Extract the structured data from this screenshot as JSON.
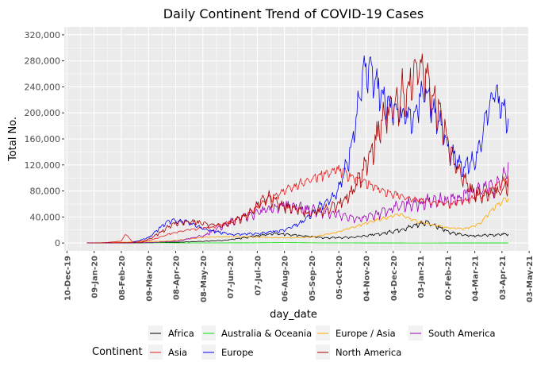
{
  "chart_data": {
    "type": "line",
    "title": "Daily Continent Trend of COVID-19 Cases",
    "xlabel": "day_date",
    "ylabel": "Total No.",
    "ylim": [
      -12000,
      332000
    ],
    "y_ticks": [
      0,
      40000,
      80000,
      120000,
      160000,
      200000,
      240000,
      280000,
      320000
    ],
    "y_tick_labels": [
      "0",
      "40,000",
      "80,000",
      "120,000",
      "160,000",
      "200,000",
      "240,000",
      "280,000",
      "320,000"
    ],
    "x_range": [
      "2019-12-07",
      "2021-05-02"
    ],
    "x_ticks": [
      "2019-12-10",
      "2020-01-09",
      "2020-02-08",
      "2020-03-09",
      "2020-04-08",
      "2020-05-08",
      "2020-06-07",
      "2020-07-07",
      "2020-08-06",
      "2020-09-05",
      "2020-10-05",
      "2020-11-04",
      "2020-12-04",
      "2021-01-03",
      "2021-02-02",
      "2021-03-04",
      "2021-04-03",
      "2021-05-03"
    ],
    "x_tick_labels": [
      "10-Dec-19",
      "09-Jan-20",
      "08-Feb-20",
      "09-Mar-20",
      "08-Apr-20",
      "08-May-20",
      "07-Jun-20",
      "07-Jul-20",
      "06-Aug-20",
      "05-Sep-20",
      "05-Oct-20",
      "04-Nov-20",
      "04-Dec-20",
      "03-Jan-21",
      "02-Feb-21",
      "04-Mar-21",
      "03-Apr-21",
      "03-May-21"
    ],
    "grid": true,
    "legend_position": "bottom",
    "legend_title": "Continent",
    "series": [
      {
        "name": "Africa",
        "color": "#000000",
        "x": [
          "2020-01-01",
          "2020-03-01",
          "2020-04-15",
          "2020-06-01",
          "2020-07-01",
          "2020-07-25",
          "2020-08-20",
          "2020-09-20",
          "2020-10-20",
          "2020-11-20",
          "2020-12-15",
          "2021-01-10",
          "2021-02-05",
          "2021-03-01",
          "2021-04-01",
          "2021-04-10"
        ],
        "y": [
          0,
          100,
          1500,
          4000,
          10000,
          15000,
          12000,
          8000,
          9000,
          14000,
          22000,
          33000,
          16000,
          11000,
          13000,
          14000
        ],
        "wiggle": 0.22
      },
      {
        "name": "Asia",
        "color": "#e31a1c",
        "x": [
          "2020-01-01",
          "2020-01-20",
          "2020-02-08",
          "2020-02-13",
          "2020-02-20",
          "2020-03-10",
          "2020-04-01",
          "2020-04-20",
          "2020-05-20",
          "2020-06-20",
          "2020-07-20",
          "2020-08-20",
          "2020-09-15",
          "2020-10-05",
          "2020-10-25",
          "2020-11-20",
          "2020-12-20",
          "2021-01-15",
          "2021-02-05",
          "2021-03-01",
          "2021-03-20",
          "2021-04-10"
        ],
        "y": [
          0,
          500,
          3000,
          14000,
          2000,
          4000,
          14000,
          20000,
          25000,
          40000,
          68000,
          90000,
          105000,
          113000,
          100000,
          82000,
          70000,
          64000,
          60000,
          68000,
          82000,
          98000
        ],
        "wiggle": 0.12
      },
      {
        "name": "Australia & Oceania",
        "color": "#00e000",
        "x": [
          "2020-01-01",
          "2020-03-25",
          "2020-04-20",
          "2020-07-01",
          "2020-08-05",
          "2020-09-15",
          "2021-01-01",
          "2021-04-10"
        ],
        "y": [
          0,
          400,
          150,
          300,
          700,
          200,
          80,
          150
        ],
        "wiggle": 0.1
      },
      {
        "name": "Europe",
        "color": "#0000ee",
        "x": [
          "2020-01-01",
          "2020-02-20",
          "2020-03-10",
          "2020-03-25",
          "2020-04-05",
          "2020-04-20",
          "2020-05-10",
          "2020-06-10",
          "2020-07-10",
          "2020-08-05",
          "2020-08-25",
          "2020-09-15",
          "2020-10-01",
          "2020-10-15",
          "2020-10-25",
          "2020-11-04",
          "2020-11-15",
          "2020-11-25",
          "2020-12-10",
          "2020-12-25",
          "2021-01-08",
          "2021-01-20",
          "2021-02-05",
          "2021-02-20",
          "2021-03-05",
          "2021-03-15",
          "2021-03-25",
          "2021-04-05",
          "2021-04-10"
        ],
        "y": [
          0,
          300,
          9000,
          28000,
          36000,
          33000,
          21000,
          13000,
          15000,
          20000,
          32000,
          58000,
          75000,
          125000,
          200000,
          282000,
          250000,
          220000,
          200000,
          190000,
          240000,
          200000,
          140000,
          120000,
          130000,
          180000,
          235000,
          210000,
          190000
        ],
        "wiggle": 0.18
      },
      {
        "name": "Europe / Asia",
        "color": "#ffa500",
        "x": [
          "2020-01-01",
          "2020-04-01",
          "2020-05-10",
          "2020-06-10",
          "2020-07-10",
          "2020-08-10",
          "2020-09-05",
          "2020-10-01",
          "2020-11-10",
          "2020-12-10",
          "2021-01-01",
          "2021-02-01",
          "2021-02-20",
          "2021-03-10",
          "2021-03-25",
          "2021-04-10"
        ],
        "y": [
          0,
          3000,
          9000,
          10000,
          9000,
          8000,
          9000,
          16000,
          33000,
          45000,
          33000,
          24000,
          22000,
          30000,
          55000,
          70000
        ],
        "wiggle": 0.1
      },
      {
        "name": "North America",
        "color": "#a50000",
        "x": [
          "2020-01-01",
          "2020-03-01",
          "2020-03-15",
          "2020-04-05",
          "2020-04-20",
          "2020-05-10",
          "2020-06-01",
          "2020-06-25",
          "2020-07-18",
          "2020-08-10",
          "2020-09-05",
          "2020-10-01",
          "2020-10-20",
          "2020-11-10",
          "2020-11-25",
          "2020-12-15",
          "2021-01-03",
          "2021-01-15",
          "2021-01-25",
          "2021-02-10",
          "2021-03-01",
          "2021-03-20",
          "2021-04-05",
          "2021-04-10"
        ],
        "y": [
          0,
          500,
          10000,
          30000,
          34000,
          30000,
          27000,
          42000,
          72000,
          55000,
          45000,
          58000,
          78000,
          140000,
          200000,
          235000,
          270000,
          240000,
          200000,
          120000,
          80000,
          72000,
          85000,
          92000
        ],
        "wiggle": 0.22
      },
      {
        "name": "South America",
        "color": "#9b00b5",
        "x": [
          "2020-01-01",
          "2020-03-15",
          "2020-04-10",
          "2020-05-10",
          "2020-06-10",
          "2020-07-10",
          "2020-08-05",
          "2020-09-01",
          "2020-10-01",
          "2020-10-25",
          "2020-11-15",
          "2020-12-10",
          "2021-01-10",
          "2021-02-10",
          "2021-03-05",
          "2021-03-25",
          "2021-04-05",
          "2021-04-10"
        ],
        "y": [
          0,
          1000,
          3000,
          12000,
          35000,
          48000,
          60000,
          52000,
          45000,
          38000,
          45000,
          58000,
          65000,
          68000,
          80000,
          90000,
          100000,
          120000
        ],
        "wiggle": 0.25
      }
    ],
    "legend_rows": [
      [
        "Africa",
        "Australia & Oceania",
        "Europe / Asia",
        "South America"
      ],
      [
        "Asia",
        "Europe",
        "North America"
      ]
    ]
  }
}
